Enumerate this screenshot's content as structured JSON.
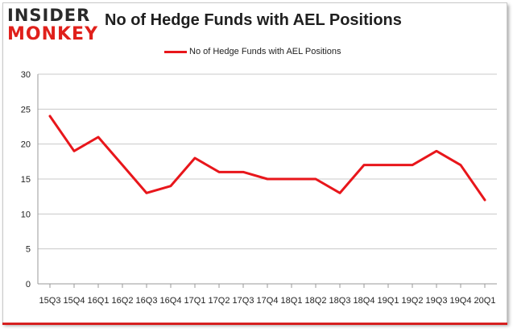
{
  "logo": {
    "line1": "INSIDER",
    "line2": "MONKEY"
  },
  "chart_data": {
    "type": "line",
    "title": "No of Hedge Funds with AEL Positions",
    "xlabel": "",
    "ylabel": "",
    "categories": [
      "15Q3",
      "15Q4",
      "16Q1",
      "16Q2",
      "16Q3",
      "16Q4",
      "17Q1",
      "17Q2",
      "17Q3",
      "17Q4",
      "18Q1",
      "18Q2",
      "18Q3",
      "18Q4",
      "19Q1",
      "19Q2",
      "19Q3",
      "19Q4",
      "20Q1"
    ],
    "series": [
      {
        "name": "No of Hedge Funds with AEL Positions",
        "values": [
          24,
          19,
          21,
          17,
          13,
          14,
          18,
          16,
          16,
          15,
          15,
          15,
          13,
          17,
          17,
          17,
          19,
          17,
          12
        ]
      }
    ],
    "ylim": [
      0,
      30
    ],
    "yticks": [
      0,
      5,
      10,
      15,
      20,
      25,
      30
    ],
    "grid": true,
    "legend_position": "top-center",
    "line_color": "#e8161b"
  }
}
